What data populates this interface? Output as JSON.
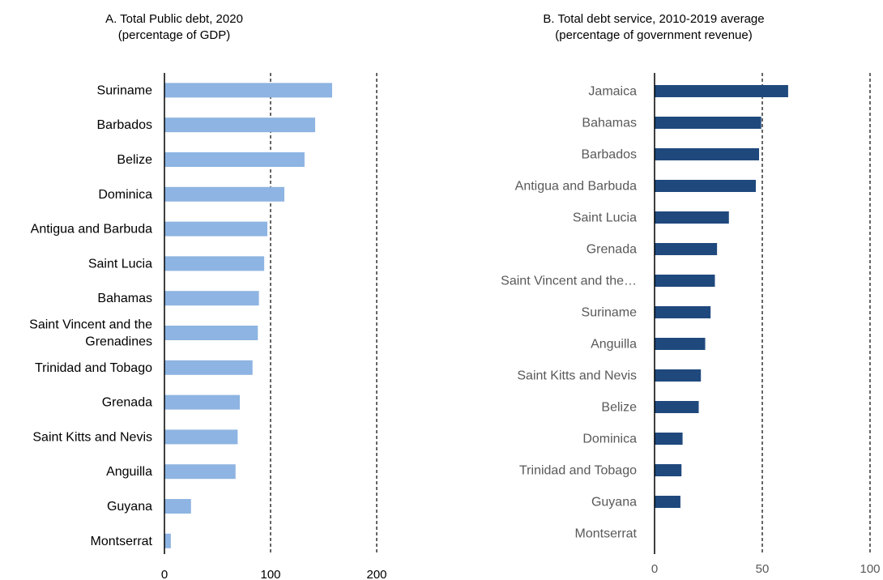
{
  "chart_data": [
    {
      "type": "bar",
      "orientation": "horizontal",
      "title": "A. Total Public debt, 2020",
      "subtitle": "(percentage of GDP)",
      "categories": [
        "Suriname",
        "Barbados",
        "Belize",
        "Dominica",
        "Antigua and Barbuda",
        "Saint Lucia",
        "Bahamas",
        "Saint Vincent and the Grenadines",
        "Trinidad and Tobago",
        "Grenada",
        "Saint Kitts and Nevis",
        "Anguilla",
        "Guyana",
        "Montserrat"
      ],
      "values": [
        158,
        142,
        132,
        113,
        97,
        94,
        89,
        88,
        83,
        71,
        69,
        67,
        25,
        6
      ],
      "xlim": [
        0,
        200
      ],
      "ticks": [
        "0",
        "100",
        "200"
      ],
      "reference_lines": [
        100,
        200
      ],
      "bar_color": "#8db4e2",
      "label_color": "#000000",
      "grid": false
    },
    {
      "type": "bar",
      "orientation": "horizontal",
      "title": "B. Total debt service, 2010-2019 average",
      "subtitle": "(percentage of government revenue)",
      "categories": [
        "Jamaica",
        "Bahamas",
        "Barbados",
        "Antigua and Barbuda",
        "Saint Lucia",
        "Grenada",
        "Saint Vincent and the…",
        "Suriname",
        "Anguilla",
        "Saint Kitts and Nevis",
        "Belize",
        "Dominica",
        "Trinidad and Tobago",
        "Guyana",
        "Montserrat"
      ],
      "values": [
        62,
        49.5,
        48.5,
        47,
        34.5,
        29,
        28,
        26,
        23.5,
        21.5,
        20.5,
        13,
        12.5,
        12,
        0
      ],
      "xlim": [
        0,
        100
      ],
      "ticks": [
        "0",
        "50",
        "100"
      ],
      "reference_lines": [
        50,
        100
      ],
      "bar_color": "#1f497d",
      "label_color": "#595959",
      "grid": false
    }
  ]
}
